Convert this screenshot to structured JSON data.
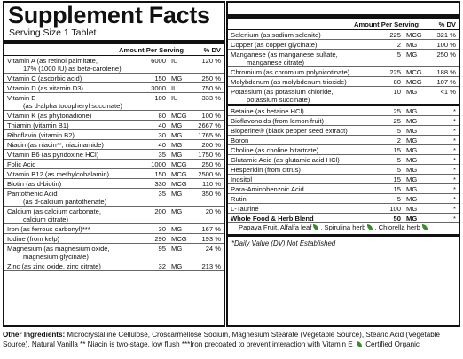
{
  "title": "Supplement Facts",
  "serving_size": "Serving Size 1 Tablet",
  "col_amount": "Amount Per Serving",
  "col_dv": "% DV",
  "left_rows": [
    {
      "name": "Vitamin A (as retinol palmitate,",
      "sub": "17% (1000 IU) as beta-carotene)",
      "amount": "6000",
      "unit": "IU",
      "dv": "120 %"
    },
    {
      "name": "Vitamin C (ascorbic acid)",
      "sub": "",
      "amount": "150",
      "unit": "MG",
      "dv": "250 %"
    },
    {
      "name": "Vitamin D (as vitamin D3)",
      "sub": "",
      "amount": "3000",
      "unit": "IU",
      "dv": "750 %"
    },
    {
      "name": "Vitamin E",
      "sub": "(as d-alpha tocopheryl succinate)",
      "amount": "100",
      "unit": "IU",
      "dv": "333 %"
    },
    {
      "name": "Vitamin K (as phytonadione)",
      "sub": "",
      "amount": "80",
      "unit": "MCG",
      "dv": "100 %"
    },
    {
      "name": "Thiamin (vitamin B1)",
      "sub": "",
      "amount": "40",
      "unit": "MG",
      "dv": "2667 %"
    },
    {
      "name": "Riboflavin (vitamin B2)",
      "sub": "",
      "amount": "30",
      "unit": "MG",
      "dv": "1765 %"
    },
    {
      "name": "Niacin (as niacin**, niacinamide)",
      "sub": "",
      "amount": "40",
      "unit": "MG",
      "dv": "200 %"
    },
    {
      "name": "Vitamin B6 (as pyridoxine HCl)",
      "sub": "",
      "amount": "35",
      "unit": "MG",
      "dv": "1750 %"
    },
    {
      "name": "Folic Acid",
      "sub": "",
      "amount": "1000",
      "unit": "MCG",
      "dv": "250 %"
    },
    {
      "name": "Vitamin B12 (as methylcobalamin)",
      "sub": "",
      "amount": "150",
      "unit": "MCG",
      "dv": "2500 %"
    },
    {
      "name": "Biotin (as d-biotin)",
      "sub": "",
      "amount": "330",
      "unit": "MCG",
      "dv": "110 %"
    },
    {
      "name": "Pantothenic Acid",
      "sub": "(as d-calcium pantothenate)",
      "amount": "35",
      "unit": "MG",
      "dv": "350 %"
    },
    {
      "name": "Calcium (as calcium carbonate,",
      "sub": "calcium citrate)",
      "amount": "200",
      "unit": "MG",
      "dv": "20 %"
    },
    {
      "name": "Iron (as ferrous carbonyl)***",
      "sub": "",
      "amount": "30",
      "unit": "MG",
      "dv": "167 %"
    },
    {
      "name": "Iodine (from kelp)",
      "sub": "",
      "amount": "290",
      "unit": "MCG",
      "dv": "193 %"
    },
    {
      "name": "Magnesium (as magnesium oxide,",
      "sub": "magnesium glycinate)",
      "amount": "95",
      "unit": "MG",
      "dv": "24 %"
    },
    {
      "name": "Zinc (as zinc oxide, zinc citrate)",
      "sub": "",
      "amount": "32",
      "unit": "MG",
      "dv": "213 %"
    }
  ],
  "right_rows": [
    {
      "name": "Selenium (as sodium selenite)",
      "sub": "",
      "amount": "225",
      "unit": "MCG",
      "dv": "321 %"
    },
    {
      "name": "Copper (as copper glycinate)",
      "sub": "",
      "amount": "2",
      "unit": "MG",
      "dv": "100 %"
    },
    {
      "name": "Manganese (as manganese sulfate,",
      "sub": "manganese citrate)",
      "amount": "5",
      "unit": "MG",
      "dv": "250 %"
    },
    {
      "name": "Chromium (as chromium polynicotinate)",
      "sub": "",
      "amount": "225",
      "unit": "MCG",
      "dv": "188 %"
    },
    {
      "name": "Molybdenum (as molybdenum trioxide)",
      "sub": "",
      "amount": "80",
      "unit": "MCG",
      "dv": "107 %"
    },
    {
      "name": "Potassium (as potassium chloride,",
      "sub": "potassium succinate)",
      "amount": "10",
      "unit": "MG",
      "dv": "<1 %",
      "thick": true
    },
    {
      "name": "Betaine (as betaine HCl)",
      "sub": "",
      "amount": "25",
      "unit": "MG",
      "dv": "*"
    },
    {
      "name": "Bioflavonoids (from lemon fruit)",
      "sub": "",
      "amount": "25",
      "unit": "MG",
      "dv": "*"
    },
    {
      "name": "Bioperine® (black pepper seed extract)",
      "sub": "",
      "amount": "5",
      "unit": "MG",
      "dv": "*"
    },
    {
      "name": "Boron",
      "sub": "",
      "amount": "2",
      "unit": "MG",
      "dv": "*"
    },
    {
      "name": "Choline (as choline bitartrate)",
      "sub": "",
      "amount": "15",
      "unit": "MG",
      "dv": "*"
    },
    {
      "name": "Glutamic Acid (as glutamic acid HCl)",
      "sub": "",
      "amount": "5",
      "unit": "MG",
      "dv": "*"
    },
    {
      "name": "Hesperidin (from citrus)",
      "sub": "",
      "amount": "5",
      "unit": "MG",
      "dv": "*"
    },
    {
      "name": "Inositol",
      "sub": "",
      "amount": "15",
      "unit": "MG",
      "dv": "*"
    },
    {
      "name": "Para-Aminobenzoic Acid",
      "sub": "",
      "amount": "15",
      "unit": "MG",
      "dv": "*"
    },
    {
      "name": "Rutin",
      "sub": "",
      "amount": "5",
      "unit": "MG",
      "dv": "*"
    },
    {
      "name": "L-Taurine",
      "sub": "",
      "amount": "100",
      "unit": "MG",
      "dv": "*"
    }
  ],
  "blend": {
    "name": "Whole Food & Herb Blend",
    "amount": "50",
    "unit": "MG",
    "dv": "*",
    "items": [
      "Papaya Fruit, Alfalfa leaf",
      ", Spirulina herb",
      ", Chlorella herb"
    ]
  },
  "footnote": "*Daily Value (DV) Not Established",
  "other_label": "Other Ingredients:",
  "other_text": "Microcrystalline Cellulose, Croscarmellose Sodium, Magnesium Stearate (Vegetable Source), Stearic Acid (Vegetable Source), Natural Vanilla  ** Niacin is two-stage, low flush  ***Iron precoated to prevent interaction with Vitamin E",
  "organic_note": "Certified Organic",
  "leaf_icon_color": "#3c8a2e"
}
